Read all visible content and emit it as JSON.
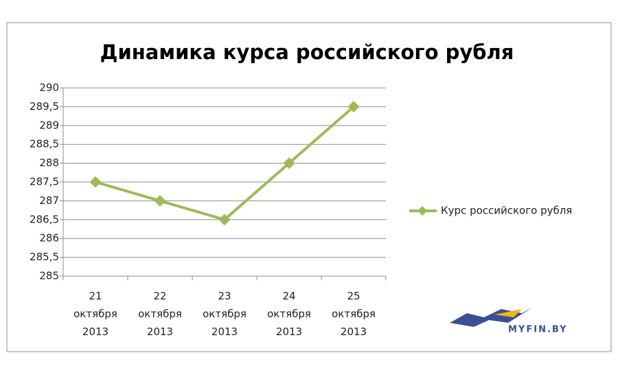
{
  "chart_data": {
    "type": "line",
    "title": "Динамика курса российского рубля",
    "categories": [
      "21 октября 2013",
      "22 октября 2013",
      "23 октября 2013",
      "24 октября 2013",
      "25 октября 2013"
    ],
    "series": [
      {
        "name": "Курс российского рубля",
        "color": "#9bbb59",
        "values": [
          287.5,
          287,
          286.5,
          288,
          289.5
        ]
      }
    ],
    "ylim": [
      285,
      290
    ],
    "yticks": [
      285,
      {
        "value": 285.5,
        "label": "285,5"
      },
      286,
      {
        "value": 286.5,
        "label": "286,5"
      },
      287,
      {
        "value": 287.5,
        "label": "287,5"
      },
      288,
      {
        "value": 288.5,
        "label": "288,5"
      },
      289,
      {
        "value": 289.5,
        "label": "289,5"
      },
      290
    ],
    "grid": true,
    "legend": "right",
    "logo": "MYFIN.BY"
  }
}
